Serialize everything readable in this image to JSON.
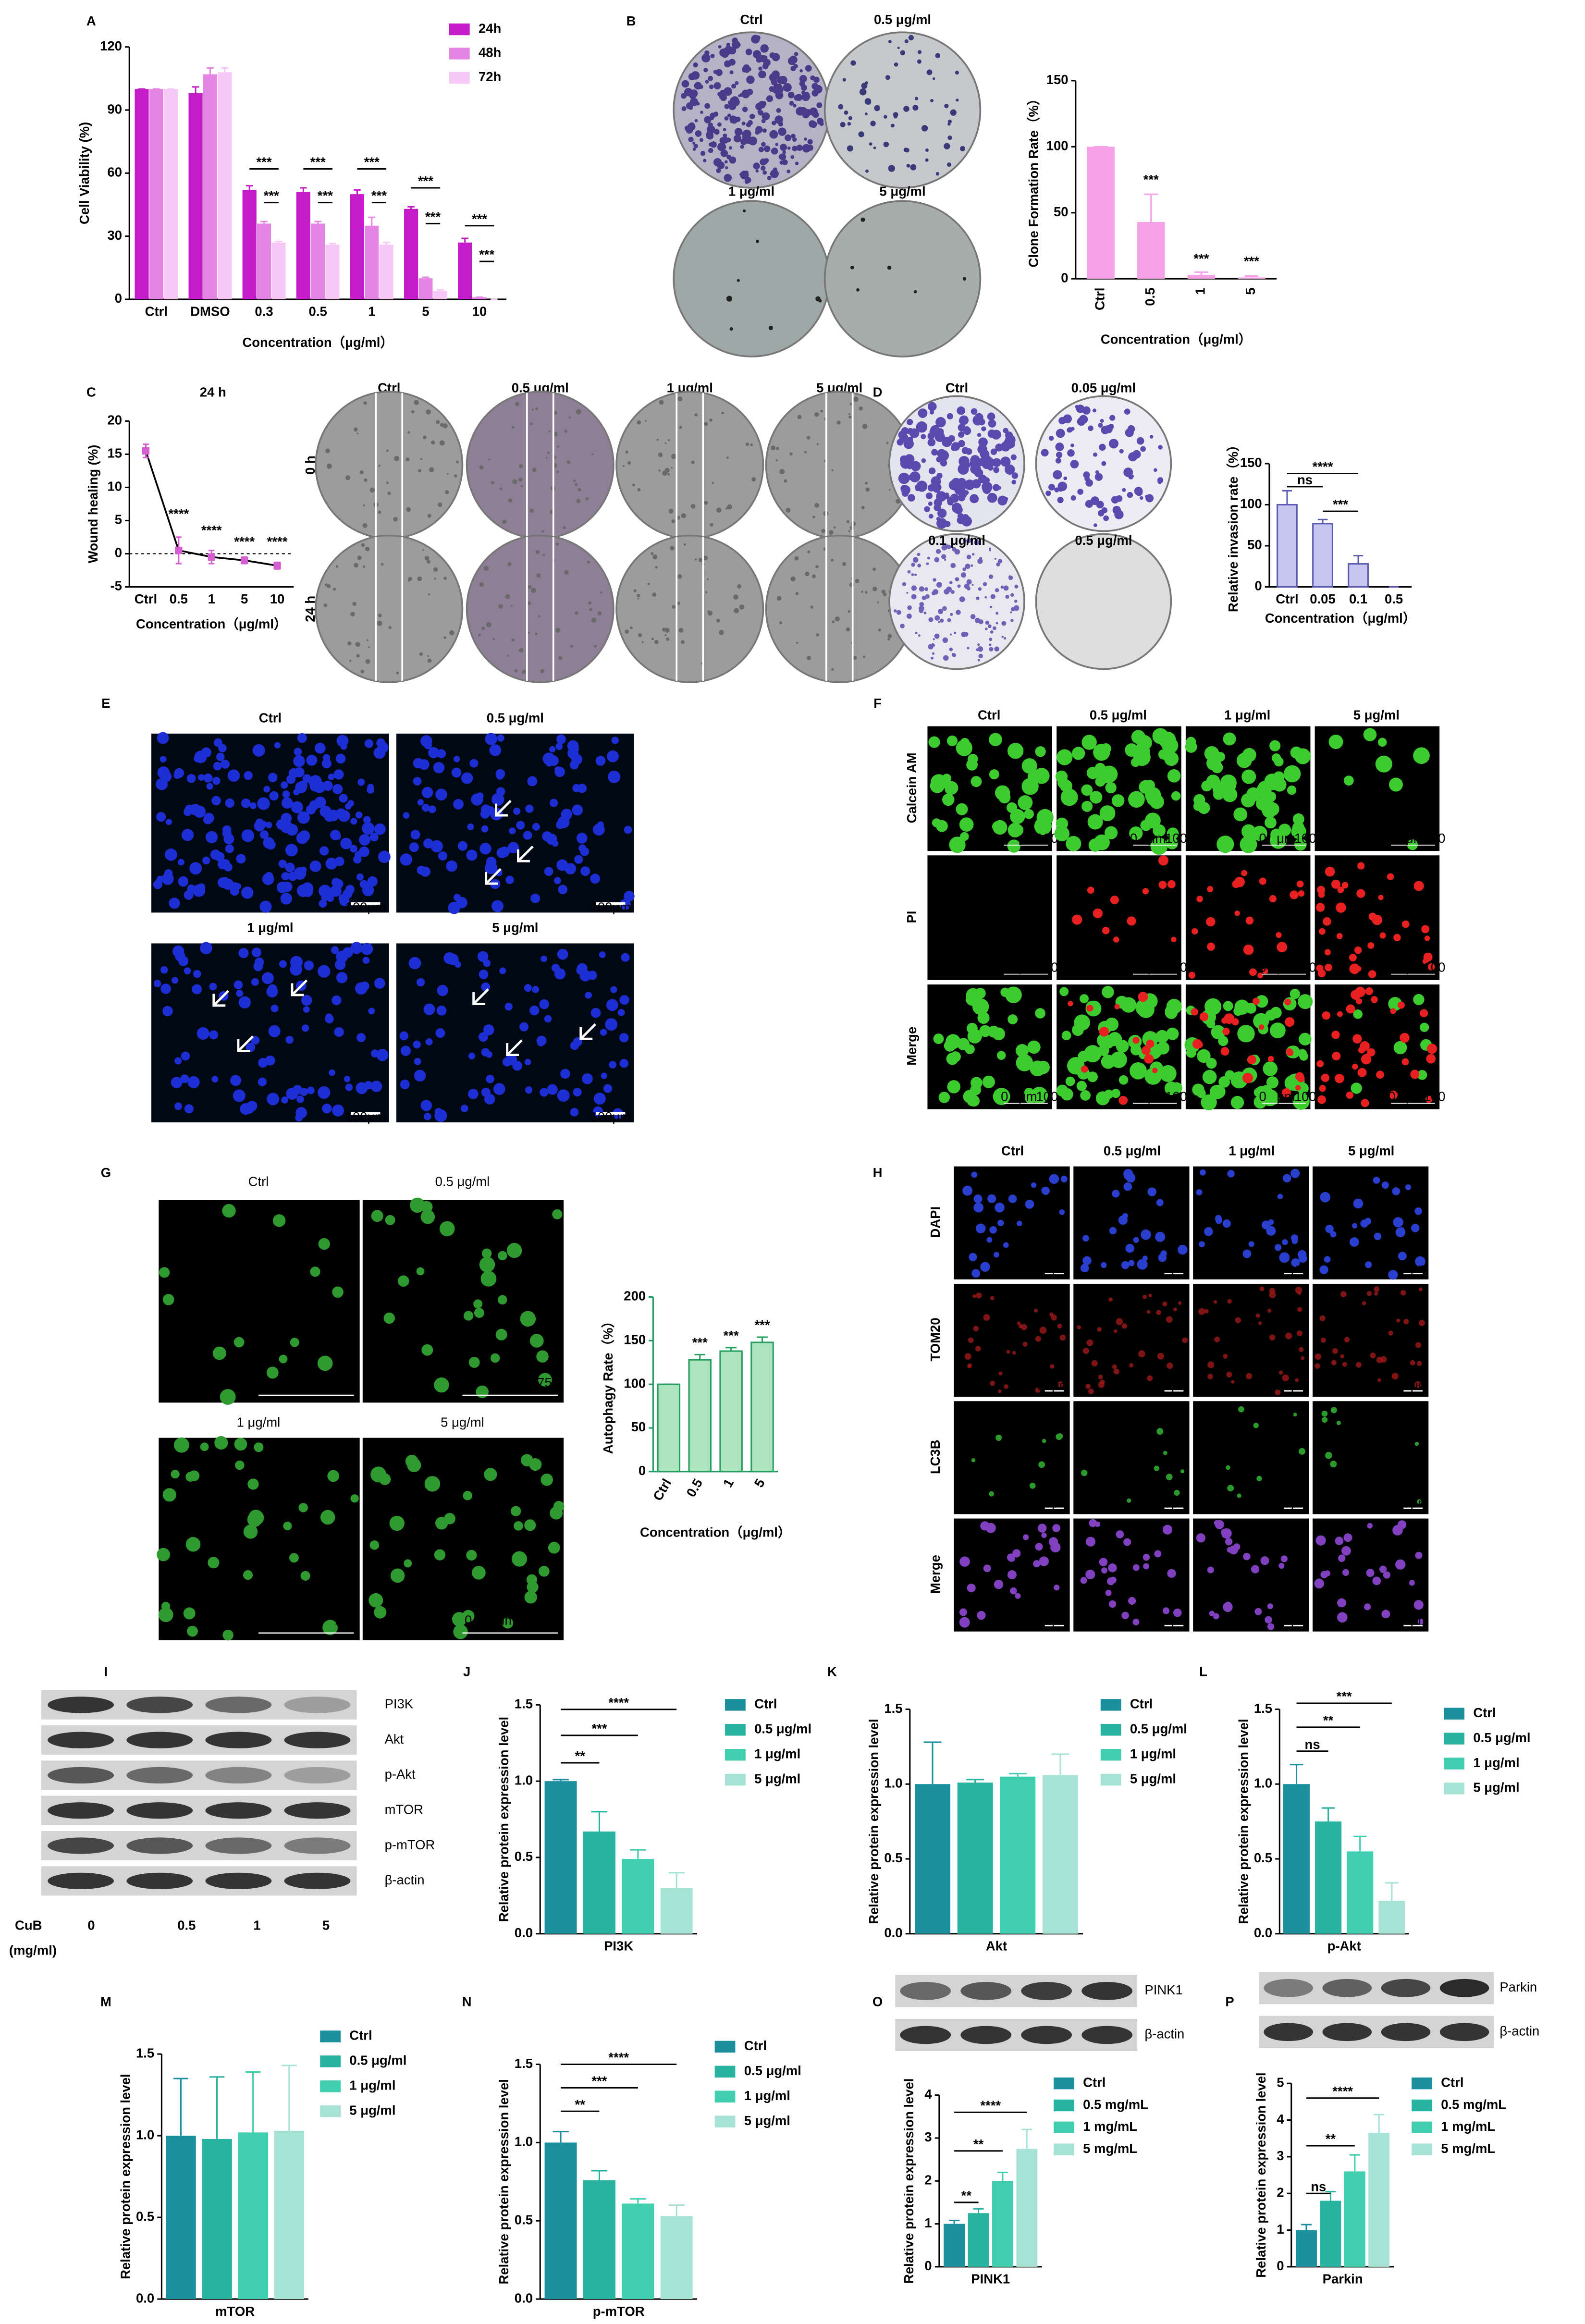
{
  "figure": {
    "panels": [
      "A",
      "B",
      "C",
      "D",
      "E",
      "F",
      "G",
      "H",
      "I",
      "J",
      "K",
      "L",
      "M",
      "N",
      "O",
      "P"
    ],
    "B": {
      "labels": [
        "Ctrl",
        "0.5 μg/ml",
        "1 μg/ml",
        "5 μg/ml"
      ]
    },
    "C": {
      "columns": [
        "Ctrl",
        "0.5 μg/ml",
        "1 μg/ml",
        "5 μg/ml"
      ],
      "rows": [
        "0 h",
        "24 h"
      ]
    },
    "D": {
      "labels": [
        "Ctrl",
        "0.05 μg/ml",
        "0.1 μg/ml",
        "0.5 μg/ml"
      ]
    },
    "E": {
      "labels": [
        "Ctrl",
        "0.5 μg/ml",
        "1 μg/ml",
        "5 μg/ml"
      ],
      "scale_bar": "100μm"
    },
    "F": {
      "columns": [
        "Ctrl",
        "0.5 μg/ml",
        "1 μg/ml",
        "5 μg/ml"
      ],
      "rows": [
        "Calcein AM",
        "PI",
        "Merge"
      ],
      "scale_bar": [
        "0",
        "μm",
        "100"
      ]
    },
    "G": {
      "labels": [
        "Ctrl",
        "0.5 μg/ml",
        "1 μg/ml",
        "5 μg/ml"
      ],
      "scale_bar": [
        "0",
        "μm",
        "75"
      ]
    },
    "H": {
      "columns": [
        "Ctrl",
        "0.5 μg/ml",
        "1 μg/ml",
        "5 μg/ml"
      ],
      "rows": [
        "DAPI",
        "TOM20",
        "LC3B",
        "Merge"
      ],
      "scale_bar": "50μm"
    },
    "I": {
      "proteins": [
        "PI3K",
        "Akt",
        "p-Akt",
        "mTOR",
        "p-mTOR",
        "β-actin"
      ],
      "treatment": "CuB",
      "unit": "(mg/ml)",
      "lanes": [
        "0",
        "0.5",
        "1",
        "5"
      ]
    },
    "O": {
      "proteins": [
        "PINK1",
        "β-actin"
      ]
    },
    "P": {
      "proteins": [
        "Parkin",
        "β-actin"
      ]
    }
  },
  "chart_data": [
    {
      "type": "bar",
      "ylabel": "Cell Viability (%)",
      "xlabel": "Concentration（μg/ml）",
      "categories": [
        "Ctrl",
        "DMSO",
        "0.3",
        "0.5",
        "1",
        "5",
        "10"
      ],
      "series": [
        {
          "name": "24h",
          "color": "#c41cc8",
          "values": [
            100,
            98,
            52,
            51,
            50,
            43,
            27
          ],
          "errors": [
            0,
            3,
            2,
            2,
            2,
            1,
            2
          ]
        },
        {
          "name": "48h",
          "color": "#e684e6",
          "values": [
            100,
            107,
            36,
            36,
            35,
            10,
            1
          ],
          "errors": [
            0,
            3,
            1,
            1,
            4,
            0.5,
            0
          ]
        },
        {
          "name": "72h",
          "color": "#f7c8f5",
          "values": [
            100,
            108,
            27,
            26,
            26,
            4,
            0
          ],
          "errors": [
            0,
            2,
            0.5,
            0.5,
            1,
            0.5,
            0
          ]
        }
      ],
      "ylim": [
        0,
        120
      ],
      "yticks": [
        0,
        30,
        60,
        90,
        120
      ],
      "annotations": [
        "***",
        "***",
        "***",
        "***",
        "***",
        "***",
        "***",
        "***",
        "***",
        "***"
      ]
    },
    {
      "type": "bar",
      "ylabel": "Clone Formation Rate（%）",
      "xlabel": "Concentration（μg/ml）",
      "categories": [
        "Ctrl",
        "0.5",
        "1",
        "5"
      ],
      "values": [
        100,
        43,
        3,
        1
      ],
      "errors": [
        0,
        21,
        2,
        1
      ],
      "color": "#f7a1e8",
      "ylim": [
        0,
        150
      ],
      "yticks": [
        0,
        50,
        100,
        150
      ],
      "annotations": [
        "***",
        "***",
        "***"
      ]
    },
    {
      "type": "line",
      "title": "24 h",
      "ylabel": "Wound healing (%)",
      "xlabel": "Concentration（μg/ml）",
      "categories": [
        "Ctrl",
        "0.5",
        "1",
        "5",
        "10"
      ],
      "values": [
        15.5,
        0.5,
        -0.5,
        -1,
        -1.8
      ],
      "errors": [
        1,
        2,
        1,
        0.5,
        0.5
      ],
      "color": "#000000",
      "marker_color": "#d45ed0",
      "ylim": [
        -5,
        20
      ],
      "yticks": [
        -5,
        0,
        5,
        10,
        15,
        20
      ],
      "annotations": [
        "****",
        "****",
        "****",
        "****"
      ]
    },
    {
      "type": "bar",
      "ylabel": "Relative invasion rate（%）",
      "xlabel": "Concentration（μg/ml）",
      "categories": [
        "Ctrl",
        "0.05",
        "0.1",
        "0.5"
      ],
      "values": [
        100,
        77,
        28,
        0
      ],
      "errors": [
        17,
        5,
        10,
        0
      ],
      "color": "#c6c6f0",
      "edgecolor": "#5a5ab4",
      "ylim": [
        0,
        150
      ],
      "yticks": [
        0,
        50,
        100,
        150
      ],
      "annotations": [
        "****",
        "ns",
        "***"
      ]
    },
    {
      "type": "bar",
      "ylabel": "Autophagy Rate（%）",
      "xlabel": "Concentration（μg/ml）",
      "categories": [
        "Ctrl",
        "0.5",
        "1",
        "5"
      ],
      "values": [
        100,
        128,
        138,
        148
      ],
      "errors": [
        0,
        6,
        4,
        6
      ],
      "color": "#aee3bf",
      "edgecolor": "#24a060",
      "ylim": [
        0,
        200
      ],
      "yticks": [
        0,
        50,
        100,
        150,
        200
      ],
      "annotations": [
        "***",
        "***",
        "***"
      ]
    },
    {
      "type": "bar",
      "ylabel": "Relative protein expression level",
      "categories": [
        "PI3K"
      ],
      "series": [
        {
          "name": "Ctrl",
          "color": "#1a8f9e",
          "values": [
            1.0
          ],
          "errors": [
            0.01
          ]
        },
        {
          "name": "0.5 μg/ml",
          "color": "#27b3a0",
          "values": [
            0.67
          ],
          "errors": [
            0.13
          ]
        },
        {
          "name": "1 μg/ml",
          "color": "#3fcfae",
          "values": [
            0.49
          ],
          "errors": [
            0.06
          ]
        },
        {
          "name": "5 μg/ml",
          "color": "#a6e3d5",
          "values": [
            0.3
          ],
          "errors": [
            0.1
          ]
        }
      ],
      "ylim": [
        0,
        1.5
      ],
      "yticks": [
        {
          "value": 0,
          "label": "0.0"
        },
        0.5,
        {
          "value": 1,
          "label": "1.0"
        },
        1.5
      ],
      "annotations": [
        "**",
        "***",
        "****"
      ]
    },
    {
      "type": "bar",
      "ylabel": "Relative protein expression level",
      "categories": [
        "Akt"
      ],
      "series": [
        {
          "name": "Ctrl",
          "color": "#1a8f9e",
          "values": [
            1.0
          ],
          "errors": [
            0.28
          ]
        },
        {
          "name": "0.5 μg/ml",
          "color": "#27b3a0",
          "values": [
            1.01
          ],
          "errors": [
            0.02
          ]
        },
        {
          "name": "1 μg/ml",
          "color": "#3fcfae",
          "values": [
            1.05
          ],
          "errors": [
            0.02
          ]
        },
        {
          "name": "5 μg/ml",
          "color": "#a6e3d5",
          "values": [
            1.06
          ],
          "errors": [
            0.14
          ]
        }
      ],
      "ylim": [
        0,
        1.5
      ],
      "yticks": [
        {
          "value": 0,
          "label": "0.0"
        },
        0.5,
        {
          "value": 1,
          "label": "1.0"
        },
        1.5
      ],
      "annotations": []
    },
    {
      "type": "bar",
      "ylabel": "Relative protein expression level",
      "categories": [
        "p-Akt"
      ],
      "series": [
        {
          "name": "Ctrl",
          "color": "#1a8f9e",
          "values": [
            1.0
          ],
          "errors": [
            0.13
          ]
        },
        {
          "name": "0.5 μg/ml",
          "color": "#27b3a0",
          "values": [
            0.75
          ],
          "errors": [
            0.09
          ]
        },
        {
          "name": "1 μg/ml",
          "color": "#3fcfae",
          "values": [
            0.55
          ],
          "errors": [
            0.1
          ]
        },
        {
          "name": "5 μg/ml",
          "color": "#a6e3d5",
          "values": [
            0.22
          ],
          "errors": [
            0.12
          ]
        }
      ],
      "ylim": [
        0,
        1.5
      ],
      "yticks": [
        {
          "value": 0,
          "label": "0.0"
        },
        0.5,
        {
          "value": 1,
          "label": "1.0"
        },
        1.5
      ],
      "annotations": [
        "ns",
        "**",
        "***"
      ]
    },
    {
      "type": "bar",
      "ylabel": "Relative protein expression level",
      "categories": [
        "mTOR"
      ],
      "series": [
        {
          "name": "Ctrl",
          "color": "#1a8f9e",
          "values": [
            1.0
          ],
          "errors": [
            0.35
          ]
        },
        {
          "name": "0.5 μg/ml",
          "color": "#27b3a0",
          "values": [
            0.98
          ],
          "errors": [
            0.38
          ]
        },
        {
          "name": "1 μg/ml",
          "color": "#3fcfae",
          "values": [
            1.02
          ],
          "errors": [
            0.37
          ]
        },
        {
          "name": "5 μg/ml",
          "color": "#a6e3d5",
          "values": [
            1.03
          ],
          "errors": [
            0.4
          ]
        }
      ],
      "ylim": [
        0,
        1.5
      ],
      "yticks": [
        {
          "value": 0,
          "label": "0.0"
        },
        0.5,
        {
          "value": 1,
          "label": "1.0"
        },
        1.5
      ],
      "annotations": []
    },
    {
      "type": "bar",
      "ylabel": "Relative protein expression level",
      "categories": [
        "p-mTOR"
      ],
      "series": [
        {
          "name": "Ctrl",
          "color": "#1a8f9e",
          "values": [
            1.0
          ],
          "errors": [
            0.07
          ]
        },
        {
          "name": "0.5 μg/ml",
          "color": "#27b3a0",
          "values": [
            0.76
          ],
          "errors": [
            0.06
          ]
        },
        {
          "name": "1 μg/ml",
          "color": "#3fcfae",
          "values": [
            0.61
          ],
          "errors": [
            0.03
          ]
        },
        {
          "name": "5 μg/ml",
          "color": "#a6e3d5",
          "values": [
            0.53
          ],
          "errors": [
            0.07
          ]
        }
      ],
      "ylim": [
        0,
        1.5
      ],
      "yticks": [
        {
          "value": 0,
          "label": "0.0"
        },
        0.5,
        {
          "value": 1,
          "label": "1.0"
        },
        1.5
      ],
      "annotations": [
        "**",
        "***",
        "****"
      ]
    },
    {
      "type": "bar",
      "ylabel": "Relative protein expression level",
      "categories": [
        "PINK1"
      ],
      "series": [
        {
          "name": "Ctrl",
          "color": "#1a8f9e",
          "values": [
            1.0
          ],
          "errors": [
            0.08
          ]
        },
        {
          "name": "0.5 mg/mL",
          "color": "#27b3a0",
          "values": [
            1.25
          ],
          "errors": [
            0.1
          ]
        },
        {
          "name": "1 mg/mL",
          "color": "#3fcfae",
          "values": [
            2.0
          ],
          "errors": [
            0.2
          ]
        },
        {
          "name": "5 mg/mL",
          "color": "#a6e3d5",
          "values": [
            2.75
          ],
          "errors": [
            0.45
          ]
        }
      ],
      "ylim": [
        0,
        4
      ],
      "yticks": [
        0,
        1,
        2,
        3,
        4
      ],
      "annotations": [
        "**",
        "**",
        "****"
      ]
    },
    {
      "type": "bar",
      "ylabel": "Relative protein expression level",
      "categories": [
        "Parkin"
      ],
      "series": [
        {
          "name": "Ctrl",
          "color": "#1a8f9e",
          "values": [
            1.0
          ],
          "errors": [
            0.15
          ]
        },
        {
          "name": "0.5 mg/mL",
          "color": "#27b3a0",
          "values": [
            1.8
          ],
          "errors": [
            0.25
          ]
        },
        {
          "name": "1 mg/mL",
          "color": "#3fcfae",
          "values": [
            2.6
          ],
          "errors": [
            0.45
          ]
        },
        {
          "name": "5 mg/mL",
          "color": "#a6e3d5",
          "values": [
            3.65
          ],
          "errors": [
            0.5
          ]
        }
      ],
      "ylim": [
        0,
        5
      ],
      "yticks": [
        0,
        1,
        2,
        3,
        4,
        5
      ],
      "annotations": [
        "ns",
        "**",
        "****"
      ]
    }
  ]
}
